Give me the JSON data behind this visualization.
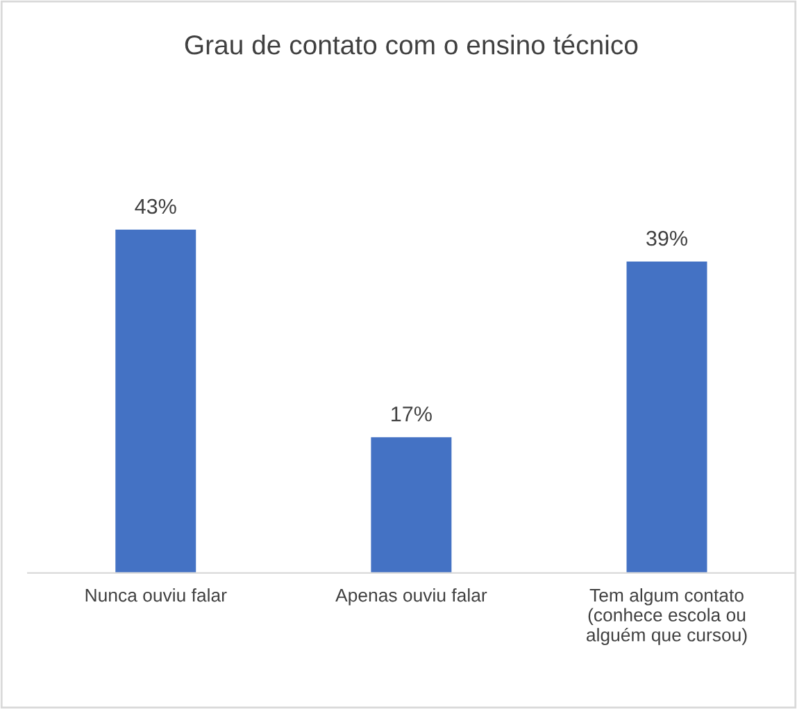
{
  "chart_data": {
    "type": "bar",
    "title": "Grau de contato com o ensino técnico",
    "categories": [
      "Nunca ouviu falar",
      "Apenas ouviu falar",
      "Tem algum contato\n(conhece escola ou\nalguém que cursou)"
    ],
    "values": [
      43,
      17,
      39
    ],
    "value_labels": [
      "43%",
      "17%",
      "39%"
    ],
    "color": "#4472c4",
    "tick_labels": "x",
    "grid": false,
    "legend": false
  }
}
